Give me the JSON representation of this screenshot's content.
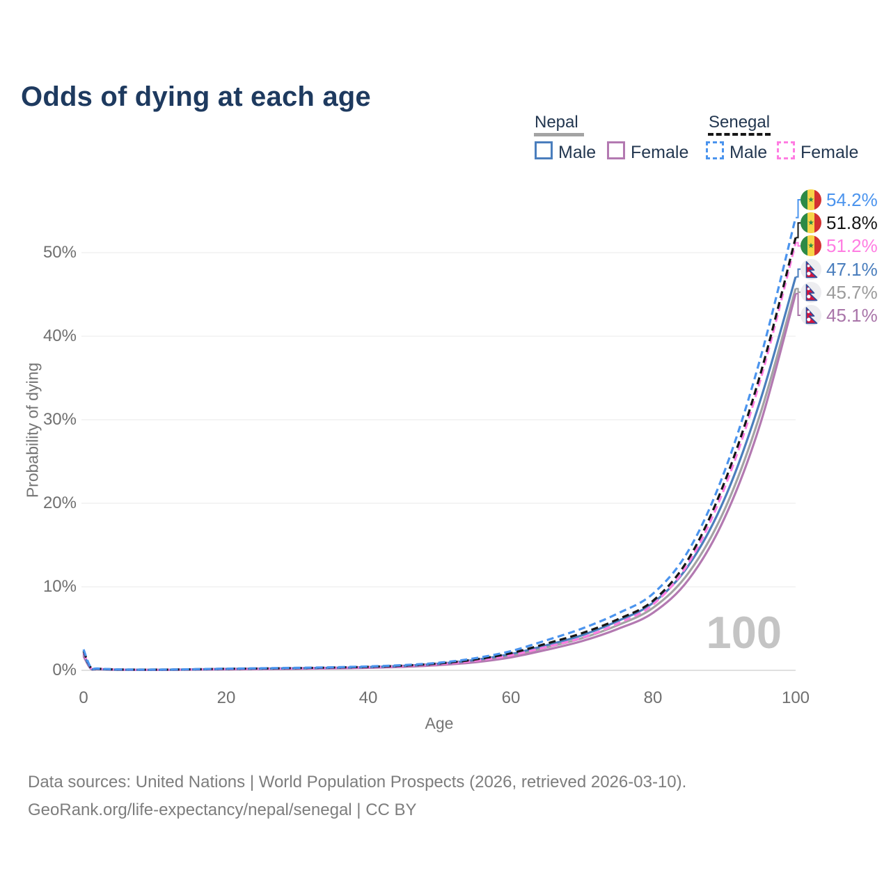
{
  "header": {
    "title": "Odds of dying at each age"
  },
  "legend": {
    "groups": [
      {
        "label": "Nepal",
        "line_style": "solid",
        "underline_color": "#a3a3a3",
        "items": [
          {
            "label": "Male",
            "color": "#4a7ebd"
          },
          {
            "label": "Female",
            "color": "#b379b1"
          }
        ]
      },
      {
        "label": "Senegal",
        "line_style": "dashed",
        "underline_color": "#161616",
        "items": [
          {
            "label": "Male",
            "color": "#4b94ee"
          },
          {
            "label": "Female",
            "color": "#ff7de2"
          }
        ]
      }
    ]
  },
  "chart_data": {
    "type": "line",
    "title": "Odds of dying at each age",
    "xlabel": "Age",
    "ylabel": "Probability of dying",
    "x_tick_labels": [
      0,
      20,
      40,
      60,
      80,
      100
    ],
    "y_tick_labels": [
      "0%",
      "10%",
      "20%",
      "30%",
      "40%",
      "50%"
    ],
    "y_grid_percent": [
      0,
      10,
      20,
      30,
      40,
      50
    ],
    "xlim": [
      0,
      100
    ],
    "ylim_percent": [
      0,
      56
    ],
    "grid": "horizontal-only",
    "legend_position": "top-right",
    "watermark": "100",
    "ages": [
      0,
      1,
      2,
      5,
      10,
      15,
      20,
      25,
      30,
      35,
      40,
      45,
      50,
      55,
      60,
      65,
      70,
      75,
      80,
      85,
      90,
      95,
      100
    ],
    "series": [
      {
        "id": "nepal_total",
        "name": "Nepal - both sexes",
        "country": "Nepal",
        "sex": "both",
        "color": "#a3a3a3",
        "line_style": "solid",
        "values_percent": [
          1.85,
          0.24,
          0.14,
          0.07,
          0.06,
          0.09,
          0.15,
          0.18,
          0.22,
          0.27,
          0.35,
          0.48,
          0.72,
          1.1,
          1.75,
          2.75,
          3.85,
          5.4,
          7.5,
          11.7,
          19.2,
          30.6,
          45.7
        ]
      },
      {
        "id": "nepal_female",
        "name": "Nepal - Female",
        "country": "Nepal",
        "sex": "female",
        "color": "#b379b1",
        "line_style": "solid",
        "values_percent": [
          1.7,
          0.21,
          0.13,
          0.06,
          0.05,
          0.08,
          0.12,
          0.15,
          0.18,
          0.23,
          0.3,
          0.42,
          0.63,
          0.97,
          1.55,
          2.45,
          3.5,
          4.95,
          6.9,
          10.9,
          18.2,
          29.4,
          45.1
        ]
      },
      {
        "id": "nepal_male",
        "name": "Nepal - Male",
        "country": "Nepal",
        "sex": "male",
        "color": "#4a7ebd",
        "line_style": "solid",
        "values_percent": [
          2.0,
          0.27,
          0.16,
          0.08,
          0.06,
          0.1,
          0.17,
          0.21,
          0.25,
          0.3,
          0.39,
          0.54,
          0.8,
          1.25,
          1.95,
          3.0,
          4.2,
          5.9,
          8.1,
          12.6,
          20.5,
          32.2,
          47.1
        ]
      },
      {
        "id": "senegal_female",
        "name": "Senegal - Female",
        "country": "Senegal",
        "sex": "female",
        "color": "#ff7de2",
        "line_style": "dashed",
        "values_percent": [
          2.1,
          0.32,
          0.19,
          0.09,
          0.07,
          0.1,
          0.15,
          0.18,
          0.23,
          0.29,
          0.37,
          0.51,
          0.74,
          1.15,
          1.8,
          2.8,
          3.9,
          5.6,
          7.9,
          12.9,
          21.8,
          34.6,
          51.2
        ]
      },
      {
        "id": "senegal_total",
        "name": "Senegal - both sexes",
        "country": "Senegal",
        "sex": "both",
        "color": "#161616",
        "line_style": "dashed",
        "values_percent": [
          2.3,
          0.35,
          0.2,
          0.1,
          0.08,
          0.12,
          0.18,
          0.22,
          0.27,
          0.33,
          0.42,
          0.57,
          0.83,
          1.3,
          2.05,
          3.2,
          4.45,
          6.1,
          8.35,
          13.4,
          22.5,
          35.3,
          51.8
        ]
      },
      {
        "id": "senegal_male",
        "name": "Senegal - Male",
        "country": "Senegal",
        "sex": "male",
        "color": "#4b94ee",
        "line_style": "dashed",
        "values_percent": [
          2.5,
          0.38,
          0.22,
          0.11,
          0.09,
          0.13,
          0.2,
          0.25,
          0.3,
          0.37,
          0.47,
          0.63,
          0.92,
          1.45,
          2.3,
          3.6,
          5.0,
          6.8,
          9.2,
          14.4,
          23.8,
          37.2,
          54.2
        ]
      }
    ],
    "end_labels": [
      {
        "label": "54.2%",
        "series": "senegal_male",
        "flag": "senegal",
        "color": "#4b94ee"
      },
      {
        "label": "51.8%",
        "series": "senegal_total",
        "flag": "senegal",
        "color": "#161616"
      },
      {
        "label": "51.2%",
        "series": "senegal_female",
        "flag": "senegal",
        "color": "#ff7de2"
      },
      {
        "label": "47.1%",
        "series": "nepal_male",
        "flag": "nepal",
        "color": "#4a7ebd"
      },
      {
        "label": "45.7%",
        "series": "nepal_total",
        "flag": "nepal",
        "color": "#9b9b9b"
      },
      {
        "label": "45.1%",
        "series": "nepal_female",
        "flag": "nepal",
        "color": "#a975a9"
      }
    ]
  },
  "footer": {
    "line1": "Data sources: United Nations | World Population Prospects (2026, retrieved 2026-03-10).",
    "line2": "GeoRank.org/life-expectancy/nepal/senegal | CC BY"
  }
}
